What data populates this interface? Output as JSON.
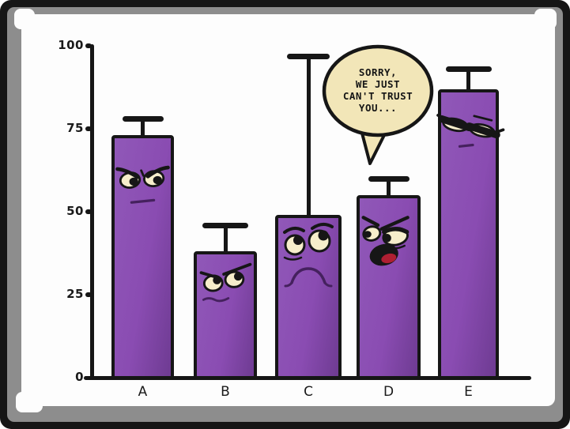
{
  "chart_data": {
    "type": "bar",
    "title": "",
    "xlabel": "",
    "ylabel": "",
    "categories": [
      "A",
      "B",
      "C",
      "D",
      "E"
    ],
    "values": [
      73,
      38,
      49,
      55,
      87
    ],
    "error_upper": [
      78,
      46,
      97,
      60,
      93
    ],
    "yticks": [
      0,
      25,
      50,
      75,
      100
    ],
    "ylim": [
      0,
      100
    ],
    "grid": false,
    "legend": null,
    "bar_faces": [
      "angry-face",
      "shifty-eyes-face",
      "worried-face",
      "talking-open-mouth-face",
      "unimpressed-face"
    ]
  },
  "speech_bubble": {
    "lines": [
      "SORRY,",
      "WE JUST",
      "CAN'T TRUST",
      "YOU..."
    ]
  },
  "colors": {
    "ink": "#161616",
    "frame_black": "#161616",
    "mat_gray": "#8d8d8d",
    "paper_white": "#fdfdfd",
    "bar_fill_light": "#9058b8",
    "bar_fill_mid": "#8a4cb2",
    "bar_fill_dark": "#6e3b92",
    "eye_cream": "#f6eecb",
    "mouth_line": "#45215e",
    "tongue_red": "#ae1f32",
    "bubble_fill": "#f2e6b8",
    "label_color": "#1a1a1a"
  }
}
